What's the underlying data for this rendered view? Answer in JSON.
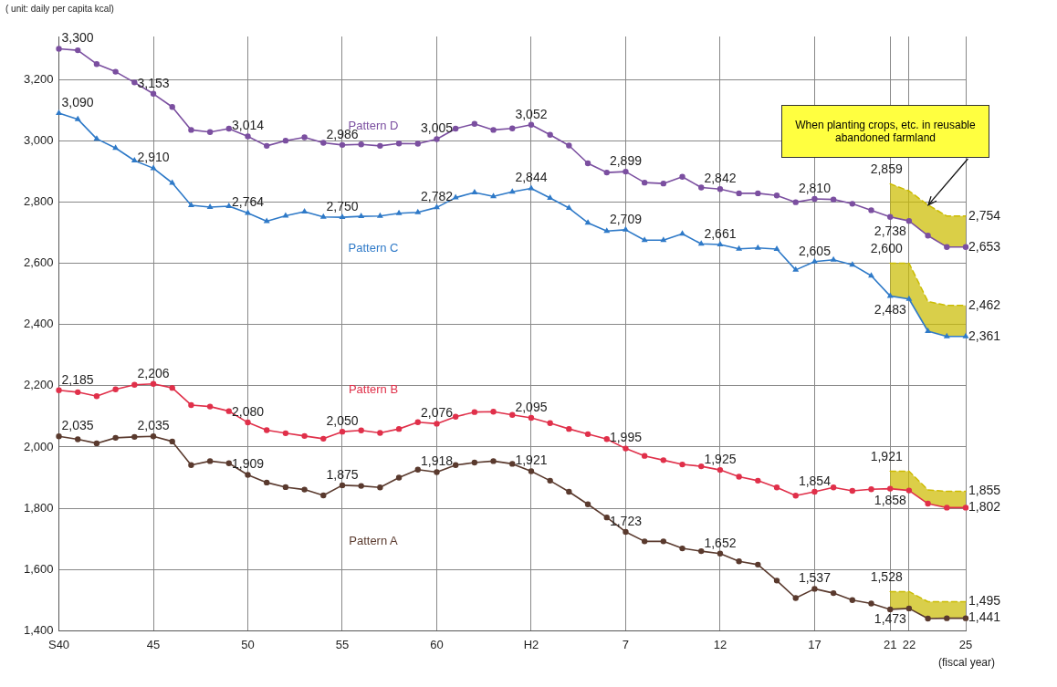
{
  "chart_data": {
    "type": "line",
    "categories": [
      "S40",
      null,
      null,
      null,
      null,
      "45",
      null,
      null,
      null,
      null,
      "50",
      null,
      null,
      null,
      null,
      "55",
      null,
      null,
      null,
      null,
      "60",
      null,
      null,
      null,
      null,
      "H2",
      null,
      null,
      null,
      null,
      "7",
      null,
      null,
      null,
      null,
      "12",
      null,
      null,
      null,
      null,
      "17",
      null,
      null,
      null,
      "21",
      "22",
      null,
      null,
      "25"
    ],
    "ylim": [
      1400,
      3340
    ],
    "yticks": [
      {
        "value": 1400,
        "label": "1,400"
      },
      {
        "value": 1600,
        "label": "1,600"
      },
      {
        "value": 1800,
        "label": "1,800"
      },
      {
        "value": 2000,
        "label": "2,000"
      },
      {
        "value": 2200,
        "label": "2,200"
      },
      {
        "value": 2400,
        "label": "2,400"
      },
      {
        "value": 2600,
        "label": "2,600"
      },
      {
        "value": 2800,
        "label": "2,800"
      },
      {
        "value": 3000,
        "label": "3,000"
      },
      {
        "value": 3200,
        "label": "3,200"
      }
    ],
    "grid": true,
    "legend": false,
    "marker": "circle",
    "line_style": "solid",
    "annotations": [
      "( unit: daily per capita kcal)",
      "When planting crops, etc. in reusable abandoned farmland",
      "(fiscal year)"
    ],
    "series": [
      {
        "name": "Pattern D",
        "color": "#7b4fa0",
        "values": [
          3300,
          3295,
          3250,
          3225,
          3190,
          3153,
          3110,
          3035,
          3028,
          3039,
          3014,
          2983,
          3000,
          3011,
          2993,
          2986,
          2988,
          2983,
          2991,
          2990,
          3005,
          3039,
          3055,
          3035,
          3040,
          3052,
          3019,
          2984,
          2926,
          2896,
          2899,
          2863,
          2860,
          2882,
          2847,
          2842,
          2828,
          2828,
          2821,
          2799,
          2810,
          2808,
          2794,
          2773,
          2751,
          2738,
          2690,
          2653,
          2653
        ],
        "value_labels": [
          "3,300",
          null,
          null,
          null,
          null,
          "3,153",
          null,
          null,
          null,
          null,
          "3,014",
          null,
          null,
          null,
          null,
          "2,986",
          null,
          null,
          null,
          null,
          "3,005",
          null,
          null,
          null,
          null,
          "3,052",
          null,
          null,
          null,
          null,
          "2,899",
          null,
          null,
          null,
          null,
          "2,842",
          null,
          null,
          null,
          null,
          "2,810",
          null,
          null,
          null,
          null,
          "2,738",
          null,
          null,
          "2,653"
        ]
      },
      {
        "name": "Pattern C",
        "color": "#2f7ac8",
        "marker": "triangle",
        "values": [
          3090,
          3070,
          3006,
          2976,
          2935,
          2910,
          2862,
          2789,
          2783,
          2786,
          2764,
          2737,
          2755,
          2768,
          2751,
          2750,
          2753,
          2754,
          2763,
          2766,
          2782,
          2814,
          2831,
          2818,
          2833,
          2844,
          2813,
          2780,
          2732,
          2705,
          2709,
          2675,
          2675,
          2696,
          2663,
          2661,
          2647,
          2650,
          2646,
          2578,
          2605,
          2611,
          2595,
          2559,
          2493,
          2483,
          2378,
          2361,
          2361
        ],
        "value_labels": [
          "3,090",
          null,
          null,
          null,
          null,
          "2,910",
          null,
          null,
          null,
          null,
          "2,764",
          null,
          null,
          null,
          null,
          "2,750",
          null,
          null,
          null,
          null,
          "2,782",
          null,
          null,
          null,
          null,
          "2,844",
          null,
          null,
          null,
          null,
          "2,709",
          null,
          null,
          null,
          null,
          "2,661",
          null,
          null,
          null,
          null,
          "2,605",
          null,
          null,
          null,
          null,
          "2,483",
          null,
          null,
          "2,361"
        ]
      },
      {
        "name": "Pattern B",
        "color": "#e0304a",
        "values": [
          2185,
          2179,
          2166,
          2188,
          2203,
          2206,
          2193,
          2137,
          2132,
          2117,
          2080,
          2055,
          2045,
          2036,
          2027,
          2050,
          2054,
          2046,
          2059,
          2081,
          2076,
          2099,
          2114,
          2115,
          2105,
          2095,
          2078,
          2059,
          2042,
          2026,
          1995,
          1971,
          1957,
          1943,
          1937,
          1925,
          1903,
          1890,
          1868,
          1841,
          1854,
          1868,
          1857,
          1862,
          1864,
          1858,
          1815,
          1802,
          1802
        ],
        "value_labels": [
          "2,185",
          null,
          null,
          null,
          null,
          "2,206",
          null,
          null,
          null,
          null,
          "2,080",
          null,
          null,
          null,
          null,
          "2,050",
          null,
          null,
          null,
          null,
          "2,076",
          null,
          null,
          null,
          null,
          "2,095",
          null,
          null,
          null,
          null,
          "1,995",
          null,
          null,
          null,
          null,
          "1,925",
          null,
          null,
          null,
          null,
          "1,854",
          null,
          null,
          null,
          null,
          "1,858",
          null,
          null,
          "1,802"
        ]
      },
      {
        "name": "Pattern A",
        "color": "#5a3a2e",
        "values": [
          2035,
          2025,
          2012,
          2030,
          2033,
          2035,
          2018,
          1941,
          1954,
          1947,
          1909,
          1884,
          1869,
          1861,
          1842,
          1875,
          1873,
          1868,
          1900,
          1926,
          1918,
          1941,
          1949,
          1954,
          1945,
          1921,
          1890,
          1854,
          1813,
          1770,
          1723,
          1692,
          1692,
          1669,
          1660,
          1652,
          1627,
          1616,
          1564,
          1507,
          1537,
          1523,
          1500,
          1489,
          1470,
          1473,
          1440,
          1441,
          1441
        ],
        "value_labels": [
          "2,035",
          null,
          null,
          null,
          null,
          "2,035",
          null,
          null,
          null,
          null,
          "1,909",
          null,
          null,
          null,
          null,
          "1,875",
          null,
          null,
          null,
          null,
          "1,918",
          null,
          null,
          null,
          null,
          "1,921",
          null,
          null,
          null,
          null,
          "1,723",
          null,
          null,
          null,
          null,
          "1,652",
          null,
          null,
          null,
          null,
          "1,537",
          null,
          null,
          null,
          null,
          "1,473",
          null,
          null,
          "1,441"
        ]
      },
      {
        "color": "#ccbc00",
        "marker": "none",
        "line_style": "dashed",
        "values": [
          null,
          null,
          null,
          null,
          null,
          null,
          null,
          null,
          null,
          null,
          null,
          null,
          null,
          null,
          null,
          null,
          null,
          null,
          null,
          null,
          null,
          null,
          null,
          null,
          null,
          null,
          null,
          null,
          null,
          null,
          null,
          null,
          null,
          null,
          null,
          null,
          null,
          null,
          null,
          null,
          null,
          null,
          null,
          null,
          2859,
          2836,
          2790,
          2754,
          2754
        ],
        "lower": [
          null,
          null,
          null,
          null,
          null,
          null,
          null,
          null,
          null,
          null,
          null,
          null,
          null,
          null,
          null,
          null,
          null,
          null,
          null,
          null,
          null,
          null,
          null,
          null,
          null,
          null,
          null,
          null,
          null,
          null,
          null,
          null,
          null,
          null,
          null,
          null,
          null,
          null,
          null,
          null,
          null,
          null,
          null,
          null,
          2751,
          2738,
          2690,
          2653,
          2653
        ],
        "upper": [
          null,
          null,
          null,
          null,
          null,
          null,
          null,
          null,
          null,
          null,
          null,
          null,
          null,
          null,
          null,
          null,
          null,
          null,
          null,
          null,
          null,
          null,
          null,
          null,
          null,
          null,
          null,
          null,
          null,
          null,
          null,
          null,
          null,
          null,
          null,
          null,
          null,
          null,
          null,
          null,
          null,
          null,
          null,
          null,
          2859,
          2836,
          2790,
          2754,
          2754
        ],
        "value_labels": [
          null,
          null,
          null,
          null,
          null,
          null,
          null,
          null,
          null,
          null,
          null,
          null,
          null,
          null,
          null,
          null,
          null,
          null,
          null,
          null,
          null,
          null,
          null,
          null,
          null,
          null,
          null,
          null,
          null,
          null,
          null,
          null,
          null,
          null,
          null,
          null,
          null,
          null,
          null,
          null,
          null,
          null,
          null,
          null,
          "2,859",
          null,
          null,
          null,
          "2,754"
        ]
      },
      {
        "color": "#cbbd04",
        "marker": "none",
        "line_style": "dashed",
        "values": [
          null,
          null,
          null,
          null,
          null,
          null,
          null,
          null,
          null,
          null,
          null,
          null,
          null,
          null,
          null,
          null,
          null,
          null,
          null,
          null,
          null,
          null,
          null,
          null,
          null,
          null,
          null,
          null,
          null,
          null,
          null,
          null,
          null,
          null,
          null,
          null,
          null,
          null,
          null,
          null,
          null,
          null,
          null,
          null,
          2600,
          2600,
          2475,
          2462,
          2462
        ],
        "lower": [
          null,
          null,
          null,
          null,
          null,
          null,
          null,
          null,
          null,
          null,
          null,
          null,
          null,
          null,
          null,
          null,
          null,
          null,
          null,
          null,
          null,
          null,
          null,
          null,
          null,
          null,
          null,
          null,
          null,
          null,
          null,
          null,
          null,
          null,
          null,
          null,
          null,
          null,
          null,
          null,
          null,
          null,
          null,
          null,
          2493,
          2483,
          2378,
          2361,
          2361
        ],
        "upper": [
          null,
          null,
          null,
          null,
          null,
          null,
          null,
          null,
          null,
          null,
          null,
          null,
          null,
          null,
          null,
          null,
          null,
          null,
          null,
          null,
          null,
          null,
          null,
          null,
          null,
          null,
          null,
          null,
          null,
          null,
          null,
          null,
          null,
          null,
          null,
          null,
          null,
          null,
          null,
          null,
          null,
          null,
          null,
          null,
          2600,
          2600,
          2475,
          2462,
          2462
        ],
        "value_labels": [
          null,
          null,
          null,
          null,
          null,
          null,
          null,
          null,
          null,
          null,
          null,
          null,
          null,
          null,
          null,
          null,
          null,
          null,
          null,
          null,
          null,
          null,
          null,
          null,
          null,
          null,
          null,
          null,
          null,
          null,
          null,
          null,
          null,
          null,
          null,
          null,
          null,
          null,
          null,
          null,
          null,
          null,
          null,
          null,
          "2,600",
          null,
          null,
          null,
          "2,462"
        ]
      },
      {
        "color": "#cebb02",
        "marker": "none",
        "line_style": "dashed",
        "values": [
          null,
          null,
          null,
          null,
          null,
          null,
          null,
          null,
          null,
          null,
          null,
          null,
          null,
          null,
          null,
          null,
          null,
          null,
          null,
          null,
          null,
          null,
          null,
          null,
          null,
          null,
          null,
          null,
          null,
          null,
          null,
          null,
          null,
          null,
          null,
          null,
          null,
          null,
          null,
          null,
          null,
          null,
          null,
          null,
          1921,
          1921,
          1860,
          1855,
          1855
        ],
        "lower": [
          null,
          null,
          null,
          null,
          null,
          null,
          null,
          null,
          null,
          null,
          null,
          null,
          null,
          null,
          null,
          null,
          null,
          null,
          null,
          null,
          null,
          null,
          null,
          null,
          null,
          null,
          null,
          null,
          null,
          null,
          null,
          null,
          null,
          null,
          null,
          null,
          null,
          null,
          null,
          null,
          null,
          null,
          null,
          null,
          1864,
          1858,
          1815,
          1802,
          1802
        ],
        "upper": [
          null,
          null,
          null,
          null,
          null,
          null,
          null,
          null,
          null,
          null,
          null,
          null,
          null,
          null,
          null,
          null,
          null,
          null,
          null,
          null,
          null,
          null,
          null,
          null,
          null,
          null,
          null,
          null,
          null,
          null,
          null,
          null,
          null,
          null,
          null,
          null,
          null,
          null,
          null,
          null,
          null,
          null,
          null,
          null,
          1921,
          1921,
          1860,
          1855,
          1855
        ],
        "value_labels": [
          null,
          null,
          null,
          null,
          null,
          null,
          null,
          null,
          null,
          null,
          null,
          null,
          null,
          null,
          null,
          null,
          null,
          null,
          null,
          null,
          null,
          null,
          null,
          null,
          null,
          null,
          null,
          null,
          null,
          null,
          null,
          null,
          null,
          null,
          null,
          null,
          null,
          null,
          null,
          null,
          null,
          null,
          null,
          null,
          "1,921",
          null,
          null,
          null,
          "1,855"
        ]
      },
      {
        "color": "#cabc06",
        "marker": "none",
        "line_style": "dashed",
        "values": [
          null,
          null,
          null,
          null,
          null,
          null,
          null,
          null,
          null,
          null,
          null,
          null,
          null,
          null,
          null,
          null,
          null,
          null,
          null,
          null,
          null,
          null,
          null,
          null,
          null,
          null,
          null,
          null,
          null,
          null,
          null,
          null,
          null,
          null,
          null,
          null,
          null,
          null,
          null,
          null,
          null,
          null,
          null,
          null,
          1528,
          1528,
          1495,
          1495,
          1495
        ],
        "lower": [
          null,
          null,
          null,
          null,
          null,
          null,
          null,
          null,
          null,
          null,
          null,
          null,
          null,
          null,
          null,
          null,
          null,
          null,
          null,
          null,
          null,
          null,
          null,
          null,
          null,
          null,
          null,
          null,
          null,
          null,
          null,
          null,
          null,
          null,
          null,
          null,
          null,
          null,
          null,
          null,
          null,
          null,
          null,
          null,
          1470,
          1473,
          1440,
          1441,
          1441
        ],
        "upper": [
          null,
          null,
          null,
          null,
          null,
          null,
          null,
          null,
          null,
          null,
          null,
          null,
          null,
          null,
          null,
          null,
          null,
          null,
          null,
          null,
          null,
          null,
          null,
          null,
          null,
          null,
          null,
          null,
          null,
          null,
          null,
          null,
          null,
          null,
          null,
          null,
          null,
          null,
          null,
          null,
          null,
          null,
          null,
          null,
          1528,
          1528,
          1495,
          1495,
          1495
        ],
        "value_labels": [
          null,
          null,
          null,
          null,
          null,
          null,
          null,
          null,
          null,
          null,
          null,
          null,
          null,
          null,
          null,
          null,
          null,
          null,
          null,
          null,
          null,
          null,
          null,
          null,
          null,
          null,
          null,
          null,
          null,
          null,
          null,
          null,
          null,
          null,
          null,
          null,
          null,
          null,
          null,
          null,
          null,
          null,
          null,
          null,
          "1,528",
          null,
          null,
          null,
          "1,495"
        ]
      }
    ]
  }
}
